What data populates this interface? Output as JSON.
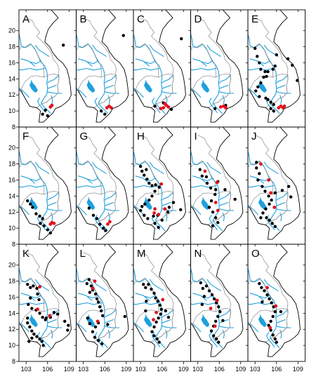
{
  "panels": [
    "A",
    "B",
    "C",
    "D",
    "E",
    "F",
    "G",
    "H",
    "I",
    "J",
    "K",
    "L",
    "M",
    "N",
    "O"
  ],
  "axis": {
    "y_ticks": [
      "8",
      "10",
      "12",
      "14",
      "16",
      "18",
      "20"
    ],
    "x_ticks": [
      "103",
      "106",
      "109"
    ]
  },
  "map_extent": {
    "lon": [
      102,
      110
    ],
    "lat": [
      8,
      22.6
    ]
  },
  "colors": {
    "river": "#1fa0dc",
    "coast": "#000000",
    "border": "#8a8a8a",
    "site_black": "#000000",
    "site_red": "#e0141e"
  },
  "points": {
    "A": {
      "black": [
        [
          105.7,
          10.1
        ],
        [
          105.3,
          9.6
        ],
        [
          106.0,
          9.4
        ],
        [
          108.2,
          18.2
        ]
      ],
      "red": [
        [
          106.6,
          10.7
        ],
        [
          106.4,
          10.5
        ]
      ]
    },
    "B": {
      "black": [
        [
          108.6,
          19.4
        ],
        [
          105.5,
          10.0
        ],
        [
          106.0,
          9.6
        ]
      ],
      "red": [
        [
          106.6,
          10.6
        ],
        [
          106.3,
          10.4
        ],
        [
          106.9,
          10.4
        ]
      ]
    },
    "C": {
      "black": [
        [
          108.7,
          19.0
        ],
        [
          105.0,
          10.6
        ],
        [
          107.3,
          10.2
        ],
        [
          106.2,
          11.0
        ]
      ],
      "red": [
        [
          106.6,
          10.7
        ],
        [
          106.2,
          10.4
        ],
        [
          105.8,
          10.3
        ],
        [
          106.9,
          10.5
        ],
        [
          106.4,
          10.9
        ]
      ]
    },
    "D": {
      "black": [
        [
          105.4,
          10.3
        ],
        [
          106.9,
          10.7
        ]
      ],
      "red": [
        [
          106.6,
          10.6
        ],
        [
          106.2,
          10.5
        ],
        [
          106.9,
          10.4
        ]
      ]
    },
    "E": {
      "black": [
        [
          103.0,
          17.8
        ],
        [
          103.3,
          16.8
        ],
        [
          103.6,
          16.0
        ],
        [
          103.8,
          15.2
        ],
        [
          104.4,
          14.9
        ],
        [
          104.8,
          14.9
        ],
        [
          105.5,
          15.2
        ],
        [
          105.8,
          15.6
        ],
        [
          104.6,
          14.3
        ],
        [
          104.2,
          14.2
        ],
        [
          103.8,
          13.5
        ],
        [
          103.4,
          13.0
        ],
        [
          103.1,
          12.5
        ],
        [
          103.6,
          11.8
        ],
        [
          104.5,
          11.6
        ],
        [
          104.8,
          11.4
        ],
        [
          105.2,
          11.1
        ],
        [
          105.6,
          10.8
        ],
        [
          105.2,
          10.3
        ],
        [
          105.6,
          10.0
        ],
        [
          106.0,
          17.0
        ],
        [
          107.6,
          16.5
        ],
        [
          108.2,
          15.7
        ],
        [
          108.9,
          13.8
        ]
      ],
      "red": [
        [
          106.6,
          10.6
        ],
        [
          106.9,
          10.4
        ],
        [
          106.3,
          10.4
        ],
        [
          107.1,
          10.6
        ]
      ]
    },
    "F": {
      "black": [
        [
          103.2,
          13.4
        ],
        [
          103.6,
          13.0
        ],
        [
          103.9,
          12.6
        ],
        [
          104.4,
          11.8
        ],
        [
          104.9,
          11.5
        ],
        [
          105.3,
          11.2
        ],
        [
          105.0,
          10.6
        ],
        [
          105.5,
          10.3
        ],
        [
          106.0,
          9.8
        ],
        [
          106.4,
          9.4
        ]
      ],
      "red": [
        [
          106.6,
          10.7
        ],
        [
          106.9,
          10.6
        ],
        [
          106.4,
          10.5
        ]
      ]
    },
    "G": {
      "black": [
        [
          103.8,
          12.5
        ],
        [
          104.4,
          11.6
        ],
        [
          104.9,
          11.2
        ],
        [
          105.3,
          10.5
        ],
        [
          105.8,
          10.0
        ],
        [
          106.1,
          9.7
        ]
      ],
      "red": [
        [
          106.7,
          10.8
        ],
        [
          106.4,
          10.5
        ]
      ]
    },
    "H": {
      "black": [
        [
          103.0,
          17.7
        ],
        [
          103.2,
          17.1
        ],
        [
          103.5,
          16.6
        ],
        [
          103.8,
          17.3
        ],
        [
          103.9,
          16.1
        ],
        [
          104.2,
          15.6
        ],
        [
          104.6,
          15.3
        ],
        [
          105.1,
          15.4
        ],
        [
          105.6,
          15.1
        ],
        [
          105.0,
          14.6
        ],
        [
          104.6,
          14.0
        ],
        [
          104.2,
          13.5
        ],
        [
          103.6,
          13.0
        ],
        [
          103.2,
          12.7
        ],
        [
          103.0,
          12.2
        ],
        [
          103.5,
          11.6
        ],
        [
          104.0,
          11.2
        ],
        [
          104.8,
          11.5
        ],
        [
          105.4,
          11.6
        ],
        [
          105.0,
          10.6
        ],
        [
          105.5,
          10.1
        ],
        [
          107.0,
          12.6
        ],
        [
          106.8,
          12.0
        ],
        [
          107.6,
          13.2
        ],
        [
          108.6,
          12.3
        ],
        [
          106.0,
          11.0
        ]
      ],
      "red": [
        [
          105.9,
          15.5
        ],
        [
          105.0,
          12.4
        ],
        [
          104.9,
          11.9
        ],
        [
          105.5,
          11.7
        ],
        [
          106.4,
          12.4
        ]
      ]
    },
    "I": {
      "black": [
        [
          103.3,
          17.3
        ],
        [
          103.6,
          16.5
        ],
        [
          104.2,
          16.4
        ],
        [
          104.3,
          15.6
        ],
        [
          104.8,
          15.0
        ],
        [
          105.5,
          14.8
        ],
        [
          105.8,
          15.8
        ],
        [
          106.8,
          14.8
        ],
        [
          105.4,
          14.2
        ],
        [
          104.9,
          13.4
        ],
        [
          104.6,
          12.6
        ],
        [
          105.1,
          12.0
        ],
        [
          105.5,
          11.3
        ],
        [
          105.8,
          10.7
        ],
        [
          105.1,
          10.3
        ],
        [
          108.2,
          13.6
        ]
      ],
      "red": [
        [
          104.0,
          17.1
        ],
        [
          105.7,
          15.7
        ],
        [
          105.5,
          13.2
        ],
        [
          105.8,
          12.2
        ]
      ]
    },
    "J": {
      "black": [
        [
          103.2,
          18.2
        ],
        [
          103.2,
          17.5
        ],
        [
          103.6,
          16.8
        ],
        [
          103.4,
          16.0
        ],
        [
          104.0,
          15.2
        ],
        [
          104.4,
          14.6
        ],
        [
          104.9,
          14.0
        ],
        [
          105.3,
          13.5
        ],
        [
          105.0,
          13.0
        ],
        [
          104.5,
          12.4
        ],
        [
          104.1,
          11.9
        ],
        [
          104.6,
          11.3
        ],
        [
          105.0,
          11.0
        ],
        [
          105.4,
          10.6
        ],
        [
          105.8,
          10.2
        ],
        [
          103.8,
          11.3
        ],
        [
          105.8,
          14.4
        ],
        [
          106.8,
          14.7
        ],
        [
          107.7,
          15.2
        ],
        [
          108.0,
          13.9
        ]
      ],
      "red": [
        [
          103.8,
          18.0
        ],
        [
          104.9,
          16.0
        ],
        [
          105.2,
          14.4
        ],
        [
          105.7,
          12.6
        ]
      ]
    },
    "K": {
      "black": [
        [
          103.2,
          17.6
        ],
        [
          103.6,
          17.2
        ],
        [
          104.0,
          17.4
        ],
        [
          104.5,
          17.1
        ],
        [
          104.6,
          16.4
        ],
        [
          104.8,
          15.7
        ],
        [
          103.6,
          15.9
        ],
        [
          103.3,
          15.1
        ],
        [
          103.8,
          14.6
        ],
        [
          104.4,
          14.4
        ],
        [
          104.9,
          14.0
        ],
        [
          105.3,
          13.5
        ],
        [
          105.7,
          13.2
        ],
        [
          103.2,
          13.4
        ],
        [
          103.2,
          12.8
        ],
        [
          103.5,
          12.3
        ],
        [
          103.8,
          11.8
        ],
        [
          104.1,
          11.4
        ],
        [
          104.5,
          11.1
        ],
        [
          104.9,
          10.8
        ],
        [
          105.2,
          10.5
        ],
        [
          105.4,
          10.0
        ],
        [
          105.8,
          13.4
        ],
        [
          106.4,
          13.5
        ],
        [
          106.9,
          14.1
        ],
        [
          107.4,
          13.9
        ],
        [
          108.4,
          13.0
        ],
        [
          108.9,
          12.5
        ],
        [
          108.8,
          11.9
        ],
        [
          103.8,
          10.9
        ],
        [
          103.4,
          10.5
        ]
      ],
      "red": [
        [
          104.9,
          17.3
        ],
        [
          104.6,
          14.5
        ],
        [
          106.3,
          13.7
        ]
      ]
    },
    "L": {
      "black": [
        [
          103.8,
          18.2
        ],
        [
          103.5,
          17.7
        ],
        [
          104.1,
          17.4
        ],
        [
          104.3,
          16.9
        ],
        [
          104.7,
          16.4
        ],
        [
          104.9,
          15.8
        ],
        [
          105.1,
          15.4
        ],
        [
          105.3,
          14.8
        ],
        [
          105.5,
          14.3
        ],
        [
          105.7,
          13.7
        ],
        [
          105.1,
          12.8
        ],
        [
          104.7,
          12.3
        ],
        [
          104.3,
          11.7
        ],
        [
          104.6,
          11.0
        ],
        [
          105.1,
          10.6
        ],
        [
          105.6,
          10.2
        ],
        [
          103.9,
          16.6
        ],
        [
          103.6,
          13.4
        ],
        [
          103.9,
          12.7
        ],
        [
          106.4,
          12.6
        ],
        [
          108.8,
          13.6
        ]
      ],
      "red": [
        [
          104.6,
          18.0
        ],
        [
          104.3,
          17.1
        ],
        [
          105.0,
          13.0
        ]
      ]
    },
    "M": {
      "black": [
        [
          103.4,
          17.6
        ],
        [
          103.7,
          17.2
        ],
        [
          104.1,
          17.6
        ],
        [
          104.5,
          17.0
        ],
        [
          104.9,
          16.5
        ],
        [
          105.1,
          15.9
        ],
        [
          105.4,
          15.5
        ],
        [
          105.7,
          15.0
        ],
        [
          105.9,
          14.5
        ],
        [
          105.8,
          13.9
        ],
        [
          105.5,
          13.4
        ],
        [
          105.2,
          12.9
        ],
        [
          104.9,
          12.3
        ],
        [
          104.6,
          11.7
        ],
        [
          104.9,
          11.2
        ],
        [
          105.3,
          10.8
        ],
        [
          105.6,
          10.4
        ],
        [
          103.8,
          15.5
        ],
        [
          103.7,
          14.3
        ],
        [
          106.5,
          14.3
        ],
        [
          106.9,
          13.5
        ]
      ],
      "red": [
        [
          106.1,
          15.7
        ],
        [
          105.2,
          14.1
        ],
        [
          104.8,
          13.2
        ]
      ]
    },
    "N": {
      "black": [
        [
          103.4,
          17.8
        ],
        [
          103.7,
          17.1
        ],
        [
          104.2,
          17.4
        ],
        [
          104.6,
          16.8
        ],
        [
          105.0,
          16.3
        ],
        [
          105.3,
          15.8
        ],
        [
          105.6,
          15.3
        ],
        [
          105.9,
          14.8
        ],
        [
          106.1,
          14.2
        ],
        [
          105.8,
          13.6
        ],
        [
          105.5,
          13.0
        ],
        [
          105.2,
          12.4
        ],
        [
          104.9,
          11.8
        ],
        [
          105.2,
          11.2
        ],
        [
          105.6,
          10.8
        ],
        [
          105.9,
          10.4
        ],
        [
          103.9,
          16.1
        ],
        [
          103.6,
          15.1
        ],
        [
          106.5,
          13.1
        ]
      ],
      "red": [
        [
          105.7,
          15.6
        ],
        [
          104.8,
          14.6
        ],
        [
          105.4,
          12.4
        ]
      ]
    },
    "O": {
      "black": [
        [
          103.6,
          17.7
        ],
        [
          103.9,
          17.2
        ],
        [
          104.3,
          16.8
        ],
        [
          104.7,
          16.3
        ],
        [
          105.0,
          15.8
        ],
        [
          105.3,
          15.3
        ],
        [
          105.6,
          14.8
        ],
        [
          105.8,
          14.2
        ],
        [
          105.5,
          13.6
        ],
        [
          105.2,
          13.0
        ],
        [
          104.9,
          12.5
        ],
        [
          105.2,
          11.9
        ],
        [
          105.5,
          11.3
        ],
        [
          105.8,
          10.8
        ],
        [
          106.0,
          10.4
        ],
        [
          104.0,
          15.4
        ],
        [
          106.6,
          14.2
        ]
      ],
      "red": [
        [
          104.7,
          17.2
        ],
        [
          105.9,
          14.9
        ],
        [
          105.1,
          12.2
        ]
      ]
    }
  }
}
